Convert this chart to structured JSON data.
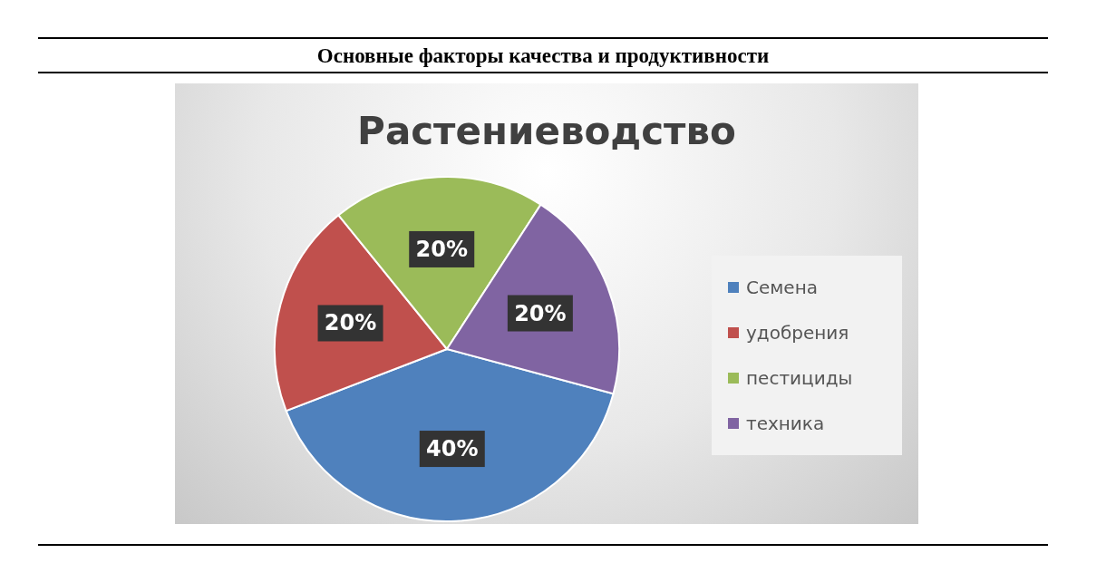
{
  "chart_data": {
    "type": "pie",
    "title": "Основные факторы качества и продуктивности",
    "subtitle": "Растениеводство",
    "categories": [
      "Семена",
      "удобрения",
      "пестициды",
      "техника"
    ],
    "values": [
      40,
      20,
      20,
      20
    ],
    "value_labels": [
      "40%",
      "20%",
      "20%",
      "20%"
    ],
    "colors": [
      "#4f81bd",
      "#c0504d",
      "#9bbb59",
      "#8064a2"
    ],
    "legend": "right"
  }
}
